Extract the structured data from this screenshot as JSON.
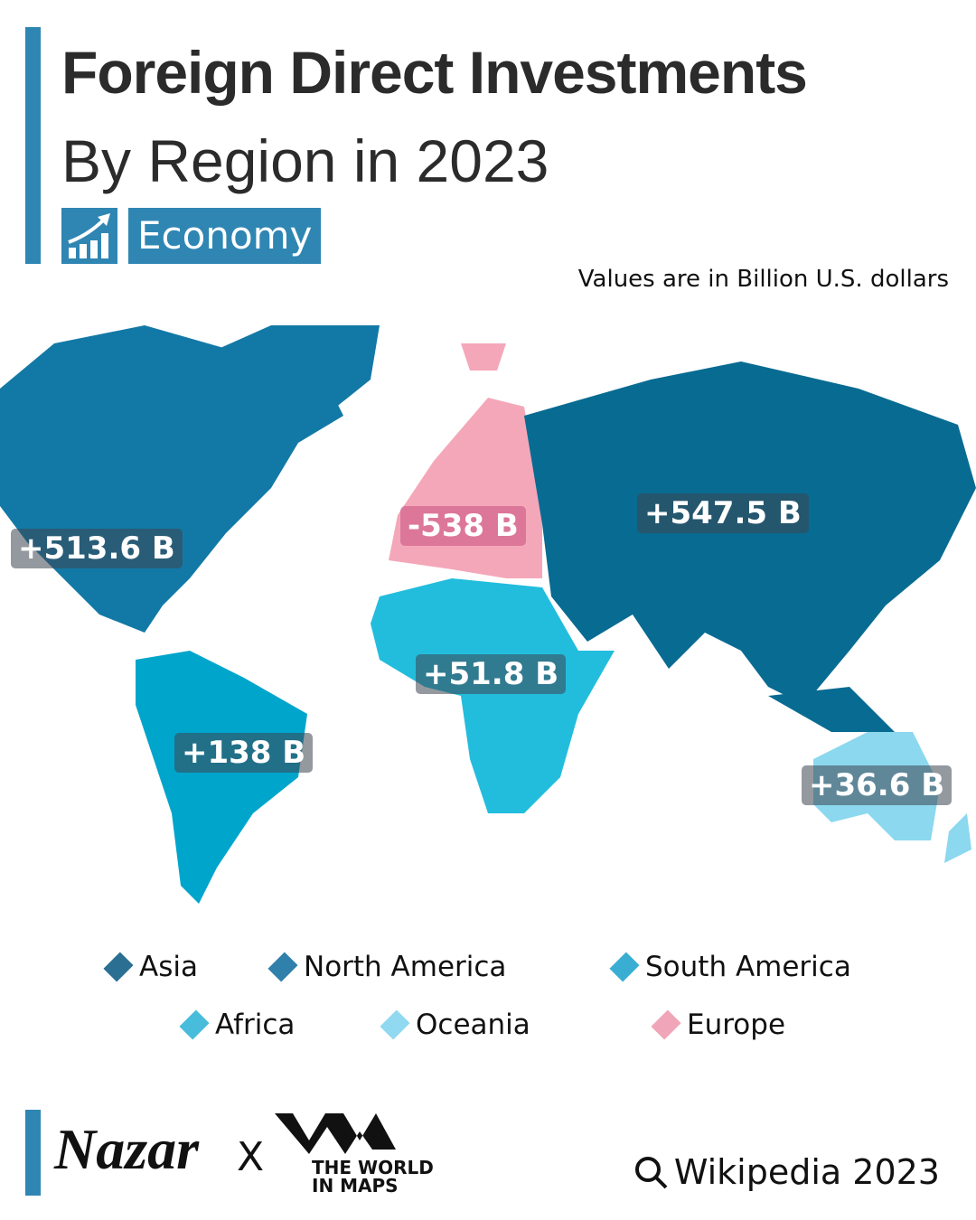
{
  "header": {
    "title": "Foreign Direct Investments",
    "subtitle": "By Region in 2023",
    "category": "Economy",
    "category_icon": "chart-growth-icon",
    "note": "Values are in Billion U.S. dollars"
  },
  "map": {
    "regions": [
      {
        "name": "North America",
        "value": "+513.6 B",
        "color": "#1279a6"
      },
      {
        "name": "Europe",
        "value": "-538 B",
        "color": "#f4a7b9"
      },
      {
        "name": "Asia",
        "value": "+547.5 B",
        "color": "#086b92"
      },
      {
        "name": "Africa",
        "value": "+51.8 B",
        "color": "#22bddd"
      },
      {
        "name": "South America",
        "value": "+138 B",
        "color": "#00a5cc"
      },
      {
        "name": "Oceania",
        "value": "+36.6 B",
        "color": "#8bd8ef"
      }
    ]
  },
  "legend": [
    {
      "label": "Asia",
      "color": "#2b6f93"
    },
    {
      "label": "North America",
      "color": "#2f80aa"
    },
    {
      "label": "South America",
      "color": "#3aaed2"
    },
    {
      "label": "Africa",
      "color": "#48bcdb"
    },
    {
      "label": "Oceania",
      "color": "#90d9f0"
    },
    {
      "label": "Europe",
      "color": "#f0a5b8"
    }
  ],
  "footer": {
    "brand1": "Nazar",
    "separator": "X",
    "brand2": "THE WORLD IN MAPS",
    "brand2_line1": "THE WORLD",
    "brand2_line2": "IN MAPS",
    "source": "Wikipedia 2023",
    "source_icon": "search-icon"
  }
}
